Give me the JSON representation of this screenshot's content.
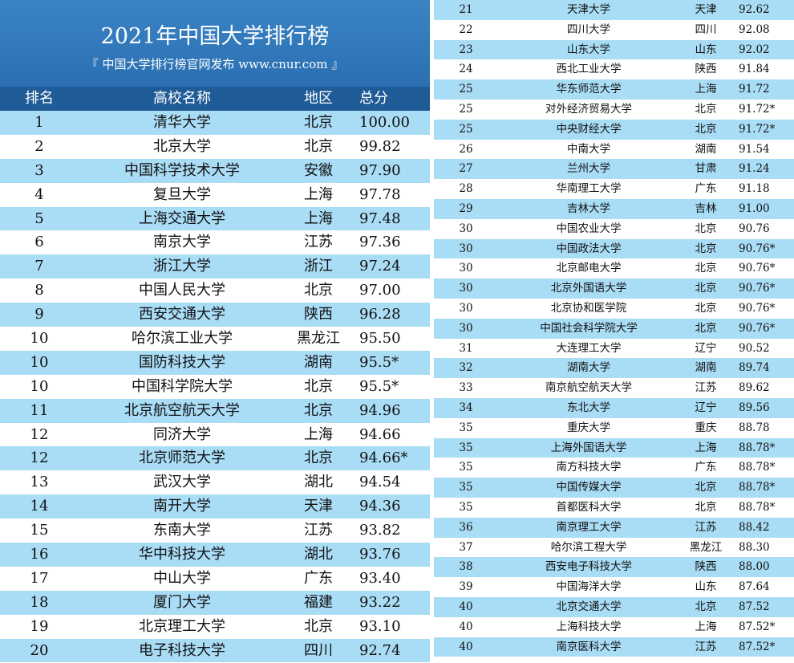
{
  "banner": {
    "title": "2021年中国大学排行榜",
    "subtitle": "『 中国大学排行榜官网发布  www.cnur.com 』"
  },
  "headers": {
    "rank": "排名",
    "name": "高校名称",
    "region": "地区",
    "score": "总分"
  },
  "left_rows": [
    {
      "rank": "1",
      "name": "清华大学",
      "region": "北京",
      "score": "100.00"
    },
    {
      "rank": "2",
      "name": "北京大学",
      "region": "北京",
      "score": "99.82"
    },
    {
      "rank": "3",
      "name": "中国科学技术大学",
      "region": "安徽",
      "score": "97.90"
    },
    {
      "rank": "4",
      "name": "复旦大学",
      "region": "上海",
      "score": "97.78"
    },
    {
      "rank": "5",
      "name": "上海交通大学",
      "region": "上海",
      "score": "97.48"
    },
    {
      "rank": "6",
      "name": "南京大学",
      "region": "江苏",
      "score": "97.36"
    },
    {
      "rank": "7",
      "name": "浙江大学",
      "region": "浙江",
      "score": "97.24"
    },
    {
      "rank": "8",
      "name": "中国人民大学",
      "region": "北京",
      "score": "97.00"
    },
    {
      "rank": "9",
      "name": "西安交通大学",
      "region": "陕西",
      "score": "96.28"
    },
    {
      "rank": "10",
      "name": "哈尔滨工业大学",
      "region": "黑龙江",
      "score": "95.50"
    },
    {
      "rank": "10",
      "name": "国防科技大学",
      "region": "湖南",
      "score": "95.5*"
    },
    {
      "rank": "10",
      "name": "中国科学院大学",
      "region": "北京",
      "score": "95.5*"
    },
    {
      "rank": "11",
      "name": "北京航空航天大学",
      "region": "北京",
      "score": "94.96"
    },
    {
      "rank": "12",
      "name": "同济大学",
      "region": "上海",
      "score": "94.66"
    },
    {
      "rank": "12",
      "name": "北京师范大学",
      "region": "北京",
      "score": "94.66*"
    },
    {
      "rank": "13",
      "name": "武汉大学",
      "region": "湖北",
      "score": "94.54"
    },
    {
      "rank": "14",
      "name": "南开大学",
      "region": "天津",
      "score": "94.36"
    },
    {
      "rank": "15",
      "name": "东南大学",
      "region": "江苏",
      "score": "93.82"
    },
    {
      "rank": "16",
      "name": "华中科技大学",
      "region": "湖北",
      "score": "93.76"
    },
    {
      "rank": "17",
      "name": "中山大学",
      "region": "广东",
      "score": "93.40"
    },
    {
      "rank": "18",
      "name": "厦门大学",
      "region": "福建",
      "score": "93.22"
    },
    {
      "rank": "19",
      "name": "北京理工大学",
      "region": "北京",
      "score": "93.10"
    },
    {
      "rank": "20",
      "name": "电子科技大学",
      "region": "四川",
      "score": "92.74"
    }
  ],
  "right_rows": [
    {
      "rank": "21",
      "name": "天津大学",
      "region": "天津",
      "score": "92.62"
    },
    {
      "rank": "22",
      "name": "四川大学",
      "region": "四川",
      "score": "92.08"
    },
    {
      "rank": "23",
      "name": "山东大学",
      "region": "山东",
      "score": "92.02"
    },
    {
      "rank": "24",
      "name": "西北工业大学",
      "region": "陕西",
      "score": "91.84"
    },
    {
      "rank": "25",
      "name": "华东师范大学",
      "region": "上海",
      "score": "91.72"
    },
    {
      "rank": "25",
      "name": "对外经济贸易大学",
      "region": "北京",
      "score": "91.72*"
    },
    {
      "rank": "25",
      "name": "中央财经大学",
      "region": "北京",
      "score": "91.72*"
    },
    {
      "rank": "26",
      "name": "中南大学",
      "region": "湖南",
      "score": "91.54"
    },
    {
      "rank": "27",
      "name": "兰州大学",
      "region": "甘肃",
      "score": "91.24"
    },
    {
      "rank": "28",
      "name": "华南理工大学",
      "region": "广东",
      "score": "91.18"
    },
    {
      "rank": "29",
      "name": "吉林大学",
      "region": "吉林",
      "score": "91.00"
    },
    {
      "rank": "30",
      "name": "中国农业大学",
      "region": "北京",
      "score": "90.76"
    },
    {
      "rank": "30",
      "name": "中国政法大学",
      "region": "北京",
      "score": "90.76*"
    },
    {
      "rank": "30",
      "name": "北京邮电大学",
      "region": "北京",
      "score": "90.76*"
    },
    {
      "rank": "30",
      "name": "北京外国语大学",
      "region": "北京",
      "score": "90.76*"
    },
    {
      "rank": "30",
      "name": "北京协和医学院",
      "region": "北京",
      "score": "90.76*"
    },
    {
      "rank": "30",
      "name": "中国社会科学院大学",
      "region": "北京",
      "score": "90.76*"
    },
    {
      "rank": "31",
      "name": "大连理工大学",
      "region": "辽宁",
      "score": "90.52"
    },
    {
      "rank": "32",
      "name": "湖南大学",
      "region": "湖南",
      "score": "89.74"
    },
    {
      "rank": "33",
      "name": "南京航空航天大学",
      "region": "江苏",
      "score": "89.62"
    },
    {
      "rank": "34",
      "name": "东北大学",
      "region": "辽宁",
      "score": "89.56"
    },
    {
      "rank": "35",
      "name": "重庆大学",
      "region": "重庆",
      "score": "88.78"
    },
    {
      "rank": "35",
      "name": "上海外国语大学",
      "region": "上海",
      "score": "88.78*"
    },
    {
      "rank": "35",
      "name": "南方科技大学",
      "region": "广东",
      "score": "88.78*"
    },
    {
      "rank": "35",
      "name": "中国传媒大学",
      "region": "北京",
      "score": "88.78*"
    },
    {
      "rank": "35",
      "name": "首都医科大学",
      "region": "北京",
      "score": "88.78*"
    },
    {
      "rank": "36",
      "name": "南京理工大学",
      "region": "江苏",
      "score": "88.42"
    },
    {
      "rank": "37",
      "name": "哈尔滨工程大学",
      "region": "黑龙江",
      "score": "88.30"
    },
    {
      "rank": "38",
      "name": "西安电子科技大学",
      "region": "陕西",
      "score": "88.00"
    },
    {
      "rank": "39",
      "name": "中国海洋大学",
      "region": "山东",
      "score": "87.64"
    },
    {
      "rank": "40",
      "name": "北京交通大学",
      "region": "北京",
      "score": "87.52"
    },
    {
      "rank": "40",
      "name": "上海科技大学",
      "region": "上海",
      "score": "87.52*"
    },
    {
      "rank": "40",
      "name": "南京医科大学",
      "region": "江苏",
      "score": "87.52*"
    }
  ]
}
